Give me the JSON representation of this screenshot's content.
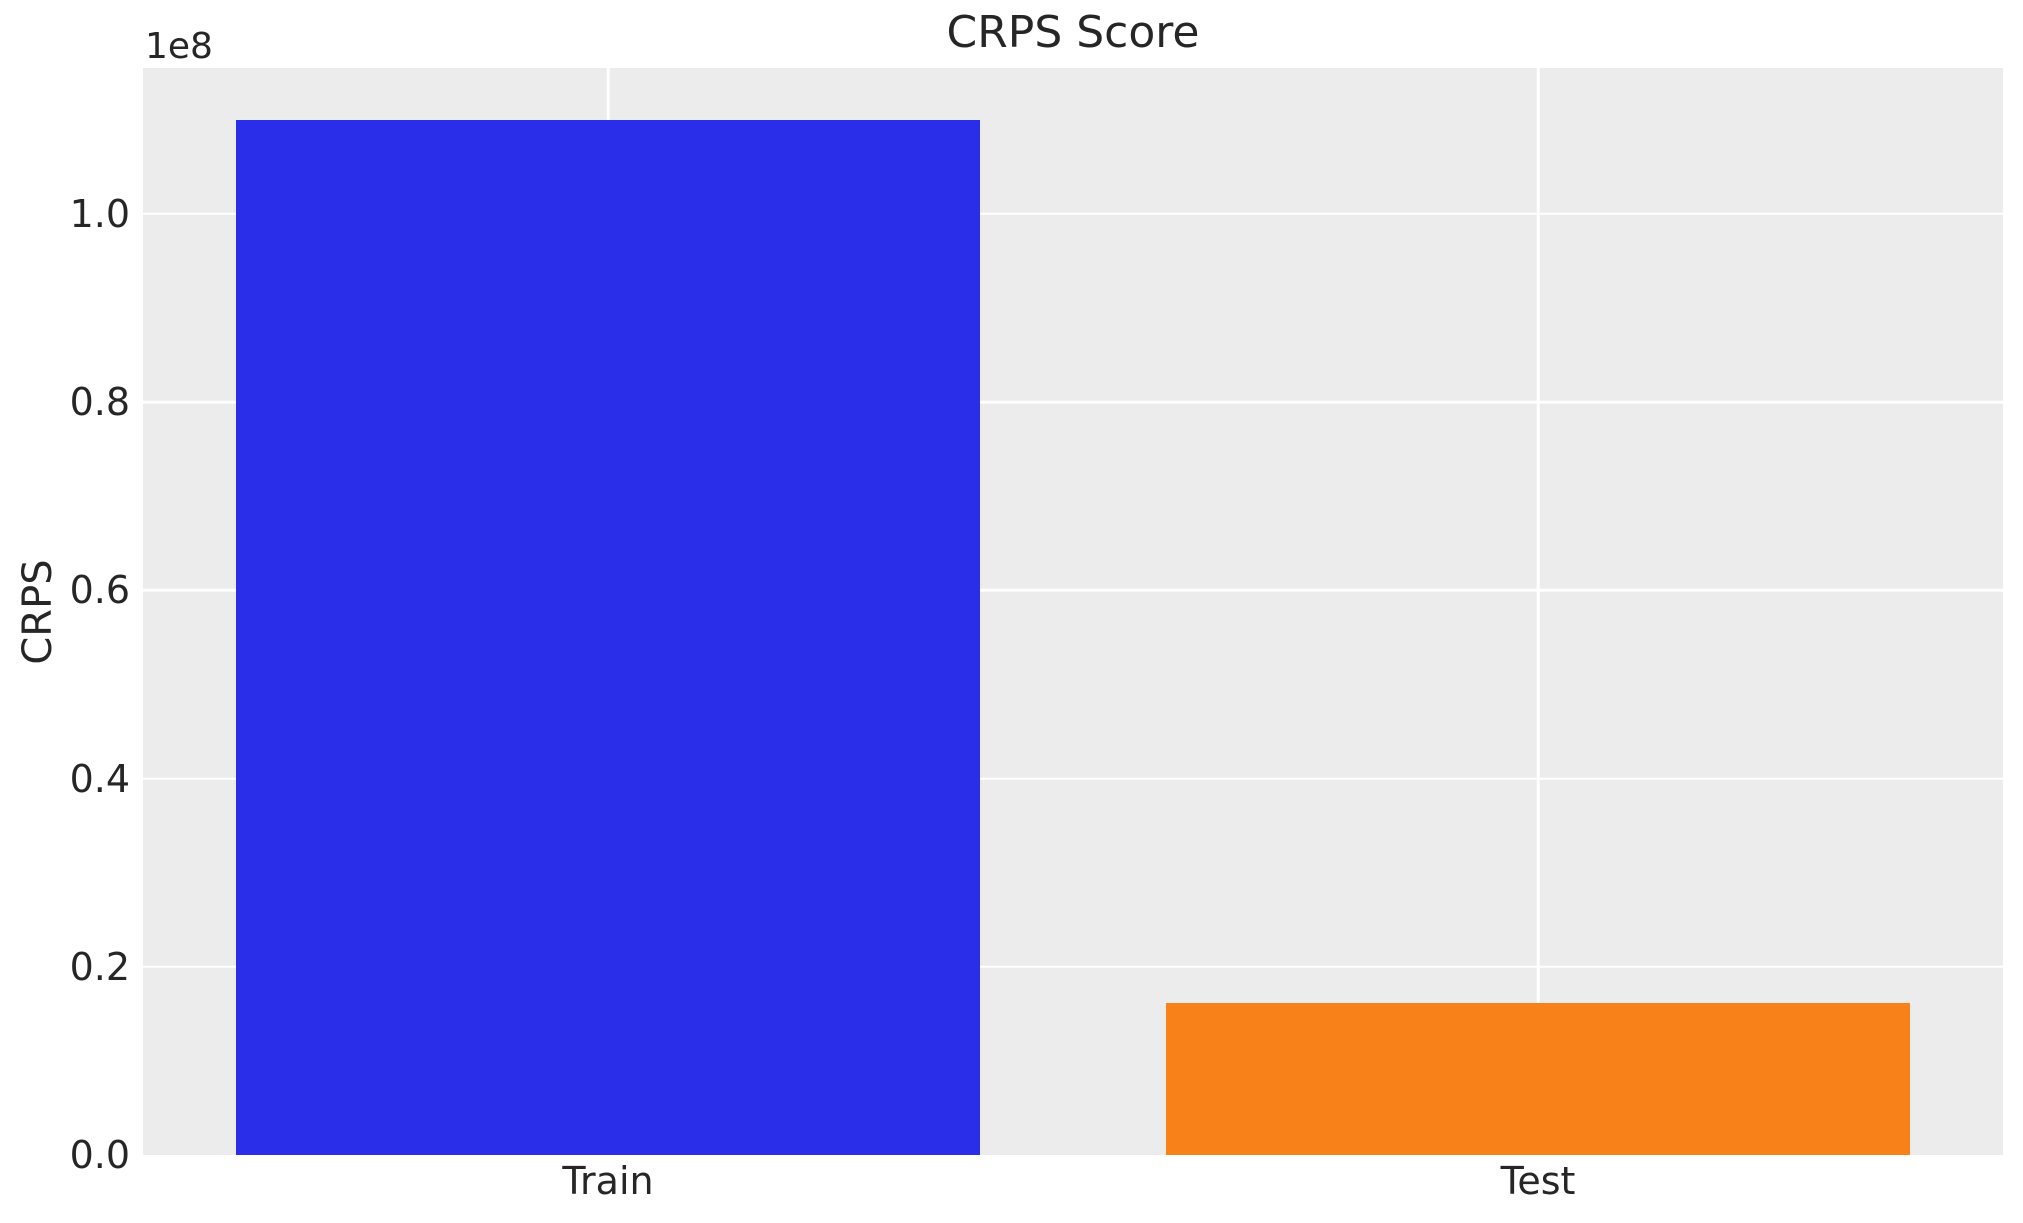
{
  "chart_data": {
    "type": "bar",
    "title": "CRPS Score",
    "xlabel": "",
    "ylabel": "CRPS",
    "offset_text": "1e8",
    "categories": [
      "Train",
      "Test"
    ],
    "values": [
      110000000,
      16100000
    ],
    "bar_colors": [
      "#2a2ee8",
      "#f8811a"
    ],
    "bar_width_fraction": 0.8,
    "ylim": [
      0,
      115500000
    ],
    "yticks": [
      0,
      20000000,
      40000000,
      60000000,
      80000000,
      100000000
    ],
    "ytick_labels": [
      "0.0",
      "0.2",
      "0.4",
      "0.6",
      "0.8",
      "1.0"
    ],
    "grid": true,
    "legend": false,
    "legend_position": "none",
    "plot_bg_color": "#ececec",
    "grid_color": "#ffffff",
    "text_color": "#262626"
  }
}
